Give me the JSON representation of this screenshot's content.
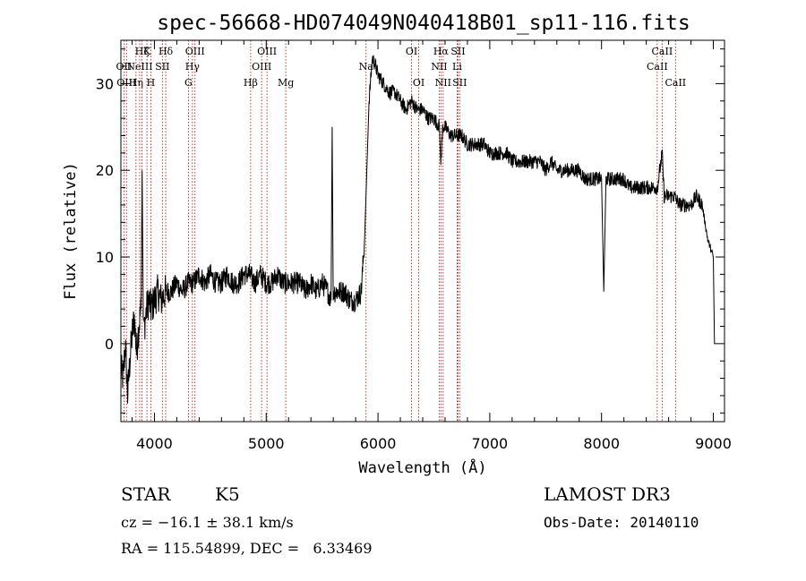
{
  "chart_data": {
    "type": "line",
    "title": "spec-56668-HD074049N040418B01_sp11-116.fits",
    "xlabel": "Wavelength (Å)",
    "ylabel": "Flux (relative)",
    "xlim": [
      3700,
      9100
    ],
    "ylim": [
      -9,
      35
    ],
    "xticks": [
      4000,
      5000,
      6000,
      7000,
      8000,
      9000
    ],
    "yticks": [
      0,
      10,
      20,
      30
    ],
    "grid": false,
    "series": [
      {
        "color": "#000000",
        "x": [
          3700,
          3720,
          3740,
          3760,
          3780,
          3800,
          3820,
          3840,
          3860,
          3880,
          3890,
          3900,
          3910,
          3930,
          3950,
          3970,
          4000,
          4030,
          4060,
          4100,
          4150,
          4200,
          4250,
          4300,
          4350,
          4400,
          4450,
          4500,
          4550,
          4600,
          4650,
          4700,
          4750,
          4800,
          4850,
          4900,
          4950,
          5000,
          5050,
          5100,
          5150,
          5200,
          5250,
          5300,
          5350,
          5400,
          5450,
          5500,
          5550,
          5580,
          5590,
          5600,
          5620,
          5650,
          5700,
          5750,
          5800,
          5850,
          5880,
          5900,
          5920,
          5950,
          5980,
          6000,
          6050,
          6100,
          6150,
          6200,
          6250,
          6300,
          6350,
          6400,
          6450,
          6500,
          6550,
          6562,
          6580,
          6600,
          6650,
          6700,
          6750,
          6800,
          6850,
          6900,
          6950,
          7000,
          7050,
          7100,
          7150,
          7200,
          7250,
          7300,
          7350,
          7400,
          7450,
          7500,
          7550,
          7600,
          7650,
          7700,
          7750,
          7800,
          7850,
          7900,
          7950,
          8000,
          8020,
          8040,
          8060,
          8100,
          8150,
          8200,
          8250,
          8300,
          8350,
          8400,
          8450,
          8500,
          8542,
          8560,
          8600,
          8650,
          8700,
          8750,
          8800,
          8850,
          8900,
          8950,
          9000,
          9010,
          9020
        ],
        "y": [
          -3,
          -4,
          0,
          -6,
          -2,
          1,
          3,
          -1,
          2,
          4,
          20,
          3,
          2,
          4,
          5,
          4,
          5,
          6,
          5,
          6,
          6,
          7,
          6,
          7,
          7,
          8,
          7,
          8,
          7,
          7,
          8,
          7,
          7,
          8,
          8,
          7,
          8,
          7,
          7,
          8,
          7,
          7,
          7,
          7,
          6,
          7,
          6,
          7,
          6,
          5,
          25,
          6,
          6,
          6,
          6,
          5,
          5,
          6,
          12,
          20,
          28,
          33,
          32,
          31,
          30,
          29,
          29,
          28,
          27,
          28,
          27,
          27,
          26,
          26,
          25,
          21,
          25,
          25,
          24,
          24,
          24,
          23,
          23,
          23,
          23,
          22,
          22,
          22,
          22,
          21,
          21,
          21,
          21,
          21,
          21,
          20,
          21,
          20,
          20,
          20,
          20,
          20,
          19,
          19,
          19,
          19,
          6,
          19,
          19,
          19,
          19,
          19,
          18,
          18,
          18,
          18,
          18,
          18,
          22,
          17,
          17,
          17,
          16,
          16,
          16,
          17,
          16,
          12,
          10,
          0,
          0
        ]
      }
    ],
    "lines": [
      {
        "x": 3727,
        "label": "OII",
        "row": 1
      },
      {
        "x": 3750,
        "label": "OIII",
        "row": 2
      },
      {
        "x": 3835,
        "label": "Hη",
        "row": 2
      },
      {
        "x": 3868,
        "label": "NeIII",
        "row": 1
      },
      {
        "x": 3889,
        "label": "Hζ",
        "row": 0
      },
      {
        "x": 3933,
        "label": "K",
        "row": 0
      },
      {
        "x": 3968,
        "label": "H",
        "row": 2
      },
      {
        "x": 4071,
        "label": "SII",
        "row": 1
      },
      {
        "x": 4101,
        "label": "Hδ",
        "row": 0
      },
      {
        "x": 4304,
        "label": "G",
        "row": 2
      },
      {
        "x": 4340,
        "label": "Hγ",
        "row": 1
      },
      {
        "x": 4363,
        "label": "OIII",
        "row": 0
      },
      {
        "x": 4861,
        "label": "Hβ",
        "row": 2
      },
      {
        "x": 4959,
        "label": "OIII",
        "row": 1
      },
      {
        "x": 5007,
        "label": "OIII",
        "row": 0
      },
      {
        "x": 5175,
        "label": "Mg",
        "row": 2
      },
      {
        "x": 5893,
        "label": "Na",
        "row": 1
      },
      {
        "x": 6300,
        "label": "OI",
        "row": 0
      },
      {
        "x": 6364,
        "label": "OI",
        "row": 2
      },
      {
        "x": 6548,
        "label": "NII",
        "row": 1
      },
      {
        "x": 6563,
        "label": "Hα",
        "row": 0
      },
      {
        "x": 6583,
        "label": "NII",
        "row": 2
      },
      {
        "x": 6708,
        "label": "Li",
        "row": 1
      },
      {
        "x": 6716,
        "label": "SII",
        "row": 0
      },
      {
        "x": 6731,
        "label": "SII",
        "row": 2
      },
      {
        "x": 8498,
        "label": "CaII",
        "row": 1
      },
      {
        "x": 8542,
        "label": "CaII",
        "row": 0
      },
      {
        "x": 8662,
        "label": "CaII",
        "row": 2
      }
    ]
  },
  "info": {
    "class_label": "STAR",
    "subclass_label": "K5",
    "survey_label": "LAMOST DR3",
    "cz_text": "cz = −16.1 ± 38.1 km/s",
    "obs_date_text": "Obs-Date: 20140110",
    "coords_text": "RA = 115.54899, DEC =   6.33469"
  }
}
